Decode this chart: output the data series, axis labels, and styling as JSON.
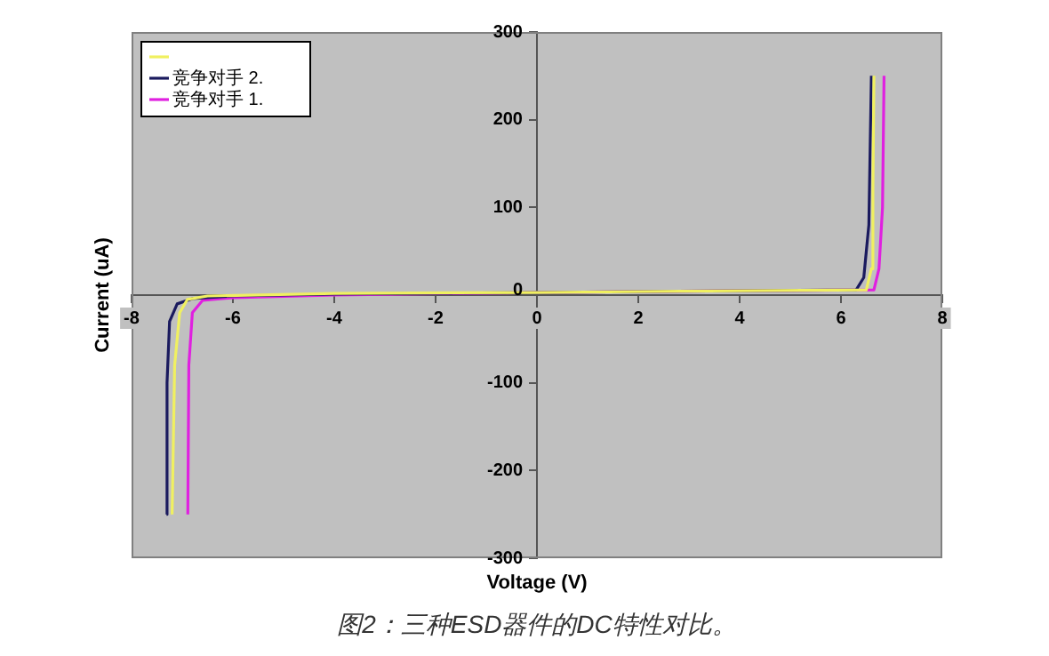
{
  "chart_data": {
    "type": "line",
    "title": "图2：三种ESD器件的DC特性对比。",
    "xlabel": "Voltage (V)",
    "ylabel": "Current (uA)",
    "xlim": [
      -8,
      8
    ],
    "xticks": [
      -8,
      -6,
      -4,
      -2,
      0,
      2,
      4,
      6,
      8
    ],
    "ylim": [
      -300,
      300
    ],
    "yticks": [
      -300,
      -200,
      -100,
      0,
      100,
      200,
      300
    ],
    "grid": false,
    "legend": "top left",
    "marker": "none",
    "line_style": "solid",
    "series": [
      {
        "color": "#f0f060",
        "x": [
          -7.2,
          -7.15,
          -7.05,
          -6.9,
          -6.5,
          -4,
          0,
          4,
          6.5,
          6.6,
          6.63,
          6.65
        ],
        "values": [
          -250,
          -80,
          -20,
          -5,
          -1,
          2,
          3,
          5,
          6,
          30,
          120,
          250
        ]
      },
      {
        "name": "竞争对手 2.",
        "color": "#1a1a5e",
        "x": [
          -7.31,
          -7.3,
          -7.25,
          -7.1,
          -6.8,
          -6,
          -4,
          0,
          4,
          6.3,
          6.45,
          6.55,
          6.6
        ],
        "values": [
          -250,
          -100,
          -30,
          -10,
          -4,
          -1,
          1,
          3,
          5,
          6,
          20,
          80,
          250
        ]
      },
      {
        "name": "竞争对手 1.",
        "color": "#e020e0",
        "x": [
          -6.89,
          -6.87,
          -6.8,
          -6.6,
          -6,
          -4,
          0,
          4,
          6.65,
          6.75,
          6.82,
          6.85
        ],
        "values": [
          -250,
          -80,
          -20,
          -6,
          -3,
          0,
          3,
          5,
          6,
          30,
          100,
          250
        ]
      }
    ]
  }
}
